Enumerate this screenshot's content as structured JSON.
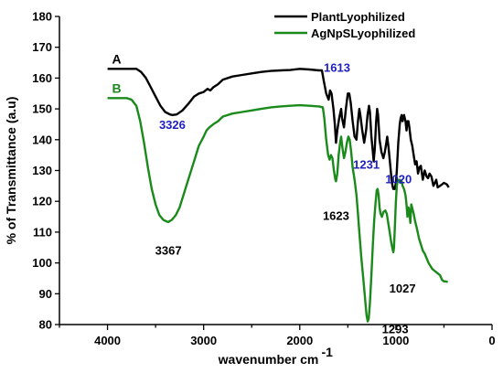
{
  "chart_data": {
    "type": "line",
    "xlabel": "wavenumber cm",
    "xlabel_sup": "-1",
    "ylabel": "% of Transmittance (a.u)",
    "xlim": [
      4500,
      0
    ],
    "ylim": [
      80,
      180
    ],
    "x_ticks": [
      4000,
      3000,
      2000,
      1000,
      0
    ],
    "y_ticks": [
      80,
      90,
      100,
      110,
      120,
      130,
      140,
      150,
      160,
      170,
      180
    ],
    "grid": false,
    "legend_position": "top-right",
    "series": [
      {
        "name": "PlantLyophilized",
        "label": "A",
        "color": "#000000",
        "points": [
          [
            4000,
            163
          ],
          [
            3800,
            163
          ],
          [
            3700,
            163
          ],
          [
            3650,
            162
          ],
          [
            3600,
            160
          ],
          [
            3550,
            157
          ],
          [
            3500,
            154
          ],
          [
            3450,
            151
          ],
          [
            3400,
            149
          ],
          [
            3350,
            148.2
          ],
          [
            3326,
            148
          ],
          [
            3280,
            148.2
          ],
          [
            3220,
            149.5
          ],
          [
            3150,
            152
          ],
          [
            3100,
            154
          ],
          [
            3050,
            155
          ],
          [
            3000,
            155.5
          ],
          [
            2960,
            156.5
          ],
          [
            2930,
            156
          ],
          [
            2900,
            157
          ],
          [
            2850,
            158
          ],
          [
            2800,
            159.5
          ],
          [
            2700,
            160.5
          ],
          [
            2600,
            161
          ],
          [
            2500,
            161.5
          ],
          [
            2400,
            162
          ],
          [
            2300,
            162.3
          ],
          [
            2200,
            162.5
          ],
          [
            2100,
            162.6
          ],
          [
            2000,
            163
          ],
          [
            1900,
            162.8
          ],
          [
            1800,
            162.5
          ],
          [
            1770,
            162.5
          ],
          [
            1750,
            159
          ],
          [
            1725,
            155
          ],
          [
            1700,
            153
          ],
          [
            1685,
            156
          ],
          [
            1670,
            155
          ],
          [
            1650,
            150
          ],
          [
            1635,
            145
          ],
          [
            1623,
            139
          ],
          [
            1610,
            143
          ],
          [
            1590,
            147
          ],
          [
            1570,
            150
          ],
          [
            1560,
            147
          ],
          [
            1540,
            144
          ],
          [
            1520,
            150
          ],
          [
            1500,
            155
          ],
          [
            1485,
            155
          ],
          [
            1470,
            152
          ],
          [
            1450,
            146
          ],
          [
            1430,
            141
          ],
          [
            1410,
            140
          ],
          [
            1395,
            146
          ],
          [
            1380,
            150
          ],
          [
            1370,
            148
          ],
          [
            1350,
            143
          ],
          [
            1330,
            139
          ],
          [
            1310,
            143
          ],
          [
            1295,
            148
          ],
          [
            1280,
            151
          ],
          [
            1270,
            149
          ],
          [
            1255,
            141
          ],
          [
            1240,
            136
          ],
          [
            1231,
            133
          ],
          [
            1220,
            137
          ],
          [
            1205,
            146
          ],
          [
            1195,
            150
          ],
          [
            1185,
            148
          ],
          [
            1170,
            140
          ],
          [
            1150,
            136
          ],
          [
            1130,
            134
          ],
          [
            1115,
            136
          ],
          [
            1100,
            139
          ],
          [
            1090,
            141
          ],
          [
            1075,
            137
          ],
          [
            1060,
            132
          ],
          [
            1045,
            127
          ],
          [
            1035,
            125
          ],
          [
            1027,
            124
          ],
          [
            1020,
            124.5
          ],
          [
            1012,
            124
          ],
          [
            1000,
            126
          ],
          [
            990,
            130
          ],
          [
            975,
            139
          ],
          [
            960,
            145
          ],
          [
            950,
            147
          ],
          [
            940,
            148
          ],
          [
            930,
            146
          ],
          [
            915,
            148
          ],
          [
            900,
            146
          ],
          [
            890,
            143
          ],
          [
            880,
            146
          ],
          [
            870,
            146
          ],
          [
            860,
            144
          ],
          [
            845,
            140
          ],
          [
            830,
            138
          ],
          [
            820,
            136
          ],
          [
            800,
            132
          ],
          [
            785,
            133
          ],
          [
            770,
            129
          ],
          [
            755,
            131
          ],
          [
            740,
            131.5
          ],
          [
            720,
            127
          ],
          [
            700,
            130
          ],
          [
            680,
            128
          ],
          [
            665,
            127.5
          ],
          [
            650,
            129
          ],
          [
            630,
            128
          ],
          [
            610,
            125
          ],
          [
            595,
            126
          ],
          [
            580,
            127
          ],
          [
            565,
            124.5
          ],
          [
            540,
            125
          ],
          [
            520,
            125.5
          ],
          [
            500,
            126
          ],
          [
            470,
            125.5
          ],
          [
            450,
            124.5
          ]
        ]
      },
      {
        "name": "AgNpSLyophilized",
        "label": "B",
        "color": "#1a8a1a",
        "points": [
          [
            4000,
            153.5
          ],
          [
            3800,
            153.5
          ],
          [
            3750,
            153
          ],
          [
            3700,
            151
          ],
          [
            3660,
            146
          ],
          [
            3620,
            139
          ],
          [
            3580,
            131
          ],
          [
            3540,
            124
          ],
          [
            3500,
            119
          ],
          [
            3460,
            115.5
          ],
          [
            3420,
            114
          ],
          [
            3390,
            113.5
          ],
          [
            3367,
            113.3
          ],
          [
            3330,
            114
          ],
          [
            3290,
            115.5
          ],
          [
            3250,
            118
          ],
          [
            3200,
            123
          ],
          [
            3150,
            128
          ],
          [
            3100,
            133
          ],
          [
            3050,
            138
          ],
          [
            3000,
            141
          ],
          [
            2970,
            143
          ],
          [
            2940,
            144
          ],
          [
            2900,
            145
          ],
          [
            2850,
            146
          ],
          [
            2800,
            147.5
          ],
          [
            2700,
            148.5
          ],
          [
            2600,
            149
          ],
          [
            2500,
            149.5
          ],
          [
            2400,
            150
          ],
          [
            2300,
            150.5
          ],
          [
            2200,
            150.8
          ],
          [
            2100,
            151
          ],
          [
            2000,
            151.2
          ],
          [
            1900,
            151
          ],
          [
            1800,
            150.8
          ],
          [
            1760,
            150.5
          ],
          [
            1745,
            147
          ],
          [
            1725,
            140
          ],
          [
            1705,
            135
          ],
          [
            1690,
            133.5
          ],
          [
            1675,
            135
          ],
          [
            1660,
            134
          ],
          [
            1645,
            130
          ],
          [
            1630,
            127
          ],
          [
            1623,
            126.5
          ],
          [
            1610,
            129
          ],
          [
            1595,
            135
          ],
          [
            1580,
            139
          ],
          [
            1570,
            141
          ],
          [
            1555,
            137
          ],
          [
            1540,
            134
          ],
          [
            1525,
            136
          ],
          [
            1510,
            139
          ],
          [
            1495,
            141
          ],
          [
            1480,
            140
          ],
          [
            1465,
            136
          ],
          [
            1450,
            131
          ],
          [
            1430,
            127
          ],
          [
            1410,
            122
          ],
          [
            1395,
            116
          ],
          [
            1380,
            110
          ],
          [
            1360,
            102
          ],
          [
            1340,
            95
          ],
          [
            1320,
            88
          ],
          [
            1305,
            83
          ],
          [
            1293,
            81
          ],
          [
            1282,
            82
          ],
          [
            1270,
            87
          ],
          [
            1255,
            96
          ],
          [
            1240,
            106
          ],
          [
            1225,
            114
          ],
          [
            1210,
            120
          ],
          [
            1200,
            123.5
          ],
          [
            1190,
            124
          ],
          [
            1180,
            122
          ],
          [
            1170,
            118
          ],
          [
            1160,
            116
          ],
          [
            1145,
            115
          ],
          [
            1130,
            116.5
          ],
          [
            1110,
            117
          ],
          [
            1095,
            116
          ],
          [
            1080,
            113
          ],
          [
            1065,
            110
          ],
          [
            1050,
            107
          ],
          [
            1035,
            104.5
          ],
          [
            1027,
            103.5
          ],
          [
            1020,
            105
          ],
          [
            1010,
            112
          ],
          [
            1000,
            120
          ],
          [
            990,
            125
          ],
          [
            980,
            127
          ],
          [
            970,
            126.5
          ],
          [
            960,
            127
          ],
          [
            950,
            126
          ],
          [
            940,
            126.5
          ],
          [
            930,
            125
          ],
          [
            915,
            124
          ],
          [
            900,
            122
          ],
          [
            890,
            119
          ],
          [
            880,
            115
          ],
          [
            870,
            118
          ],
          [
            862,
            117
          ],
          [
            850,
            113
          ],
          [
            840,
            119
          ],
          [
            828,
            117.5
          ],
          [
            815,
            116
          ],
          [
            800,
            113.5
          ],
          [
            780,
            111
          ],
          [
            760,
            108
          ],
          [
            740,
            106
          ],
          [
            720,
            104
          ],
          [
            700,
            103
          ],
          [
            680,
            101.5
          ],
          [
            660,
            100
          ],
          [
            640,
            99
          ],
          [
            620,
            98
          ],
          [
            600,
            97.5
          ],
          [
            580,
            97
          ],
          [
            560,
            96.5
          ],
          [
            540,
            96
          ],
          [
            520,
            94.5
          ],
          [
            500,
            94
          ],
          [
            480,
            94
          ],
          [
            460,
            93.8
          ]
        ]
      }
    ],
    "annotations": [
      {
        "text": "3326",
        "x": 3326,
        "y": 147,
        "color": "#2020c0"
      },
      {
        "text": "1613",
        "x": 1613,
        "y": 155,
        "color": "#2020c0"
      },
      {
        "text": "1231",
        "x": 1231,
        "y": 133,
        "color": "#2020c0"
      },
      {
        "text": "1020",
        "x": 1020,
        "y": 127,
        "color": "#2020c0"
      },
      {
        "text": "3367",
        "x": 3367,
        "y": 111,
        "color": "#000000"
      },
      {
        "text": "1623",
        "x": 1623,
        "y": 124,
        "color": "#000000"
      },
      {
        "text": "1027",
        "x": 1027,
        "y": 101,
        "color": "#000000"
      },
      {
        "text": "1293",
        "x": 1293,
        "y": 82,
        "color": "#000000"
      }
    ]
  }
}
